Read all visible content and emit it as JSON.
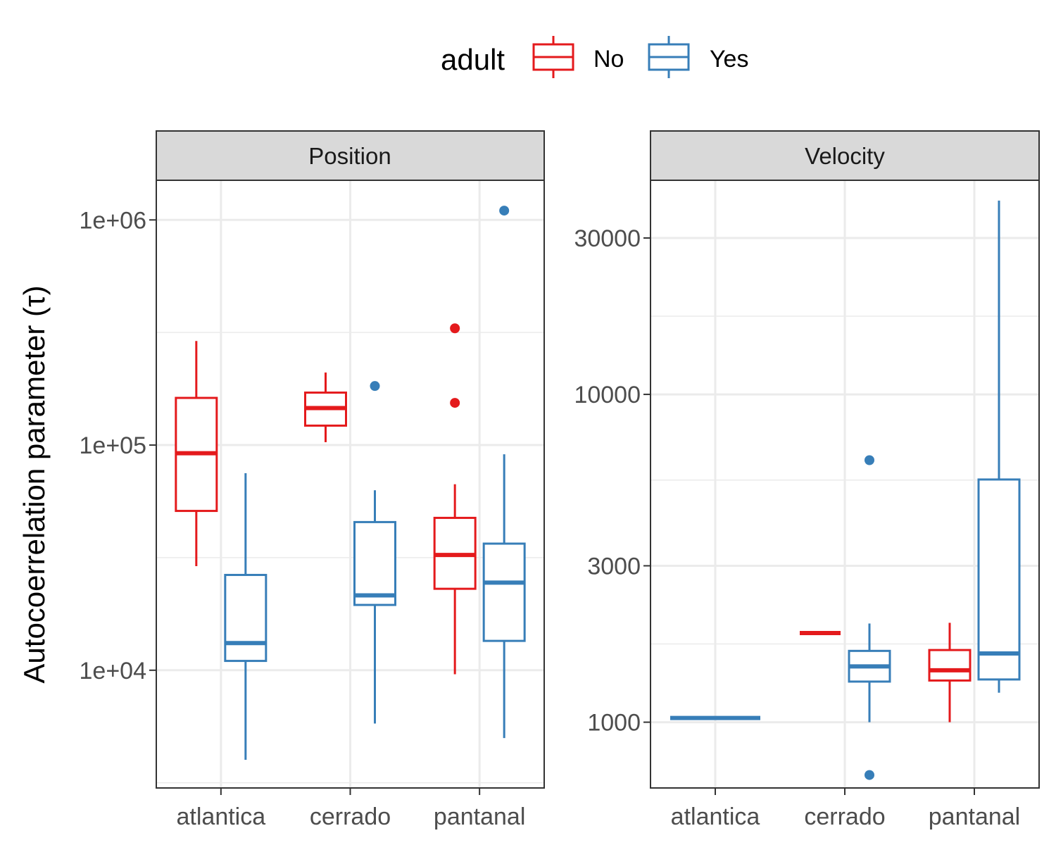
{
  "chart_data": {
    "type": "box",
    "ylabel": "Autocoerrelation parameter (τ)",
    "legend": {
      "title": "adult",
      "position": "top",
      "entries": [
        {
          "label": "No",
          "color": "#e41a1c"
        },
        {
          "label": "Yes",
          "color": "#377eb8"
        }
      ]
    },
    "categories": [
      "atlantica",
      "cerrado",
      "pantanal"
    ],
    "grid": true,
    "panels": [
      {
        "title": "Position",
        "yscale": "log10",
        "ylim": [
          3000,
          1500000
        ],
        "yticks": [
          10000,
          100000,
          1000000
        ],
        "yticklabels": [
          "1e+04",
          "1e+05",
          "1e+06"
        ],
        "boxes": [
          {
            "category": "atlantica",
            "group": "No",
            "whisker_low": 29000,
            "q1": 51000,
            "median": 92000,
            "q3": 162000,
            "whisker_high": 290000,
            "outliers": []
          },
          {
            "category": "atlantica",
            "group": "Yes",
            "whisker_low": 4000,
            "q1": 11000,
            "median": 13200,
            "q3": 26500,
            "whisker_high": 75000,
            "outliers": []
          },
          {
            "category": "cerrado",
            "group": "No",
            "whisker_low": 103000,
            "q1": 122000,
            "median": 146000,
            "q3": 171000,
            "whisker_high": 210000,
            "outliers": []
          },
          {
            "category": "cerrado",
            "group": "Yes",
            "whisker_low": 5800,
            "q1": 19500,
            "median": 21500,
            "q3": 45500,
            "whisker_high": 63000,
            "outliers": [
              183000
            ]
          },
          {
            "category": "pantanal",
            "group": "No",
            "whisker_low": 9600,
            "q1": 23000,
            "median": 32500,
            "q3": 47500,
            "whisker_high": 67000,
            "outliers": [
              154000,
              330000
            ]
          },
          {
            "category": "pantanal",
            "group": "Yes",
            "whisker_low": 5000,
            "q1": 13500,
            "median": 24500,
            "q3": 36500,
            "whisker_high": 91000,
            "outliers": [
              1100000
            ]
          }
        ]
      },
      {
        "title": "Velocity",
        "yscale": "log10",
        "ylim": [
          630,
          45000
        ],
        "yticks": [
          1000,
          3000,
          10000,
          30000
        ],
        "yticklabels": [
          "1000",
          "3000",
          "10000",
          "30000"
        ],
        "boxes": [
          {
            "category": "atlantica",
            "group": "Yes",
            "whisker_low": 1030,
            "q1": 1030,
            "median": 1030,
            "q3": 1030,
            "whisker_high": 1030,
            "outliers": [],
            "span": "full"
          },
          {
            "category": "cerrado",
            "group": "No",
            "whisker_low": 1870,
            "q1": 1870,
            "median": 1870,
            "q3": 1870,
            "whisker_high": 1870,
            "outliers": []
          },
          {
            "category": "cerrado",
            "group": "Yes",
            "whisker_low": 1000,
            "q1": 1330,
            "median": 1480,
            "q3": 1650,
            "whisker_high": 2000,
            "outliers": [
              690,
              6300
            ]
          },
          {
            "category": "pantanal",
            "group": "No",
            "whisker_low": 1000,
            "q1": 1340,
            "median": 1440,
            "q3": 1660,
            "whisker_high": 2010,
            "outliers": []
          },
          {
            "category": "pantanal",
            "group": "Yes",
            "whisker_low": 1230,
            "q1": 1350,
            "median": 1620,
            "q3": 5500,
            "whisker_high": 39000,
            "outliers": []
          }
        ]
      }
    ]
  }
}
